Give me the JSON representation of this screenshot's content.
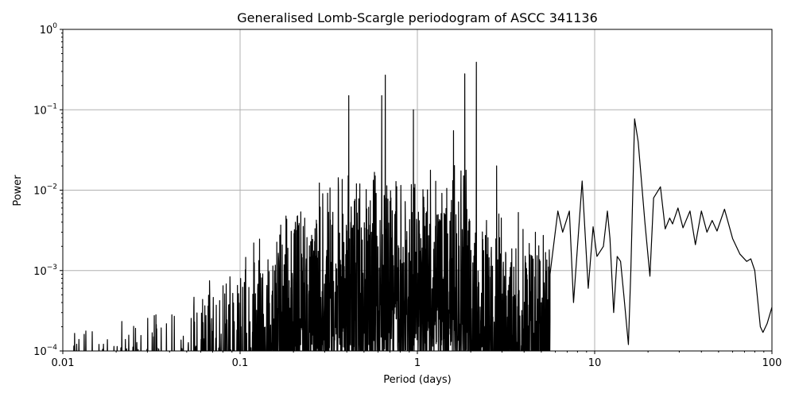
{
  "chart_data": {
    "type": "line",
    "title": "Generalised Lomb-Scargle periodogram of ASCC 341136",
    "xlabel": "Period (days)",
    "ylabel": "Power",
    "xscale": "log",
    "yscale": "log",
    "xlim": [
      0.01,
      100
    ],
    "ylim": [
      0.0001,
      1
    ],
    "grid": true,
    "x_ticks": [
      0.01,
      0.1,
      1,
      10,
      100
    ],
    "x_tick_labels": [
      "0.01",
      "0.1",
      "1",
      "10",
      "100"
    ],
    "y_ticks": [
      0.0001,
      0.001,
      0.01,
      0.1,
      1
    ],
    "y_tick_labels": [
      "10^-4",
      "10^-3",
      "10^-2",
      "10^-1",
      "10^0"
    ],
    "line_color": "#000000",
    "grid_color": "#b0b0b0",
    "notable_peaks": [
      {
        "period": 2.15,
        "power": 0.39
      },
      {
        "period": 1.85,
        "power": 0.28
      },
      {
        "period": 0.66,
        "power": 0.27
      },
      {
        "period": 0.41,
        "power": 0.15
      },
      {
        "period": 0.63,
        "power": 0.15
      },
      {
        "period": 0.95,
        "power": 0.1
      },
      {
        "period": 1.6,
        "power": 0.055
      },
      {
        "period": 2.8,
        "power": 0.02
      },
      {
        "period": 16.8,
        "power": 0.077
      },
      {
        "period": 8.5,
        "power": 0.013
      },
      {
        "period": 23.5,
        "power": 0.011
      },
      {
        "period": 54,
        "power": 0.0058
      },
      {
        "period": 20.5,
        "power": 0.00085
      },
      {
        "period": 88,
        "power": 0.00017
      }
    ],
    "smooth_tail": [
      [
        5.6,
        0.0009
      ],
      [
        6.2,
        0.0055
      ],
      [
        6.6,
        0.003
      ],
      [
        7.2,
        0.0055
      ],
      [
        7.6,
        0.0004
      ],
      [
        8.5,
        0.013
      ],
      [
        9.2,
        0.0006
      ],
      [
        9.8,
        0.0035
      ],
      [
        10.3,
        0.0015
      ],
      [
        11.2,
        0.002
      ],
      [
        11.8,
        0.0055
      ],
      [
        12.2,
        0.0025
      ],
      [
        12.8,
        0.0003
      ],
      [
        13.4,
        0.0015
      ],
      [
        14,
        0.0013
      ],
      [
        14.6,
        0.0005
      ],
      [
        15.5,
        0.00012
      ],
      [
        16,
        0.001
      ],
      [
        16.8,
        0.077
      ],
      [
        17.6,
        0.04
      ],
      [
        19.2,
        0.004
      ],
      [
        20.5,
        0.00085
      ],
      [
        21.5,
        0.008
      ],
      [
        23.5,
        0.011
      ],
      [
        25,
        0.0033
      ],
      [
        26.5,
        0.0045
      ],
      [
        27.5,
        0.0038
      ],
      [
        29.5,
        0.006
      ],
      [
        31.5,
        0.0034
      ],
      [
        34.5,
        0.0055
      ],
      [
        37,
        0.0021
      ],
      [
        40,
        0.0055
      ],
      [
        43,
        0.003
      ],
      [
        46,
        0.0042
      ],
      [
        49,
        0.0031
      ],
      [
        54,
        0.0058
      ],
      [
        60,
        0.0025
      ],
      [
        66,
        0.0016
      ],
      [
        72,
        0.0013
      ],
      [
        76,
        0.0014
      ],
      [
        80,
        0.001
      ],
      [
        86,
        0.0002
      ],
      [
        89,
        0.00017
      ],
      [
        94,
        0.00022
      ],
      [
        100,
        0.00035
      ]
    ]
  }
}
